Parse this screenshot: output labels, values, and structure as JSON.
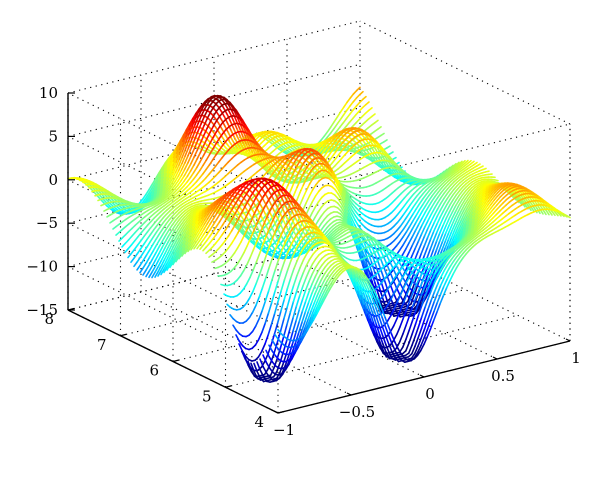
{
  "chart_data": {
    "type": "surface",
    "title": "",
    "xlabel": "",
    "ylabel": "",
    "zlabel": "",
    "xlim": [
      -1,
      1
    ],
    "ylim": [
      4,
      8
    ],
    "zlim": [
      -15,
      10
    ],
    "grid": true,
    "colormap": "jet",
    "x_ticks": [
      "−1",
      "−0.5",
      "0",
      "0.5",
      "1"
    ],
    "y_ticks": [
      "4",
      "5",
      "6",
      "7",
      "8"
    ],
    "z_ticks": [
      "−15",
      "−10",
      "−5",
      "0",
      "5",
      "10"
    ],
    "surface": {
      "description_values": "Random smooth surface with peaks near z≈8 at x≈0.2,y≈7.5 and troughs near z≈−12",
      "peaks": [
        {
          "x": 0.25,
          "y": 7.6,
          "z": 8.0
        },
        {
          "x": -0.55,
          "y": 5.3,
          "z": 5.5
        },
        {
          "x": 0.05,
          "y": 6.3,
          "z": 6.5
        },
        {
          "x": -0.2,
          "y": 7.3,
          "z": 5.0
        },
        {
          "x": 0.6,
          "y": 6.8,
          "z": 3.0
        }
      ],
      "troughs": [
        {
          "x": -0.9,
          "y": 4.6,
          "z": -11.0
        },
        {
          "x": -0.1,
          "y": 4.4,
          "z": -11.5
        },
        {
          "x": 0.3,
          "y": 5.5,
          "z": -10.5
        },
        {
          "x": 0.55,
          "y": 6.3,
          "z": -8.0
        }
      ]
    }
  }
}
